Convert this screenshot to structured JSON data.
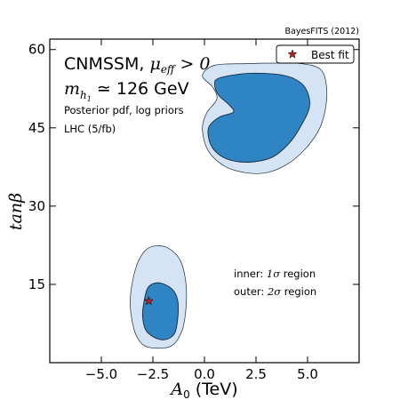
{
  "chart_data": {
    "type": "area",
    "attribution": "BayesFITS (2012)",
    "title_lines": {
      "model": "CNMSSM, ",
      "condition_symbol": "μ",
      "condition_sub": "eff",
      "condition_rel": " > 0",
      "mass_symbol": "m",
      "mass_sub": "h",
      "mass_sub_sub": "1",
      "mass_value": " ≃ 126 GeV",
      "pdf": "Posterior pdf, log priors",
      "dataset": "LHC (5/fb)"
    },
    "xlabel": {
      "symbol": "A",
      "sub": "0",
      "unit": " (TeV)"
    },
    "ylabel": "tanβ",
    "xlim": [
      -7.5,
      7.5
    ],
    "ylim": [
      0,
      62
    ],
    "x_ticks": [
      -5.0,
      -2.5,
      0.0,
      2.5,
      5.0
    ],
    "x_tick_labels": [
      "−5.0",
      "−2.5",
      "0.0",
      "2.5",
      "5.0"
    ],
    "y_ticks": [
      15,
      30,
      45,
      60
    ],
    "y_tick_labels": [
      "15",
      "30",
      "45",
      "60"
    ],
    "legend": {
      "placement": "top-right",
      "label": "Best fit",
      "marker_color": "#b22222"
    },
    "region_notes": {
      "inner_prefix": "inner: ",
      "inner_sym": "1σ",
      "inner_suffix": " region",
      "outer_prefix": "outer: ",
      "outer_sym": "2σ",
      "outer_suffix": " region"
    },
    "colors": {
      "inner": "#2f84c4",
      "outer": "#d4e4f4",
      "edge": "#1a2a3a"
    },
    "regions": [
      {
        "level": "2sigma",
        "points": [
          [
            -2.4,
            2.8
          ],
          [
            -1.6,
            3.2
          ],
          [
            -1.1,
            6.0
          ],
          [
            -0.9,
            10.2
          ],
          [
            -0.9,
            15.3
          ],
          [
            -1.2,
            19.8
          ],
          [
            -1.9,
            22.2
          ],
          [
            -2.7,
            22.0
          ],
          [
            -3.2,
            19.5
          ],
          [
            -3.5,
            15.3
          ],
          [
            -3.6,
            11.0
          ],
          [
            -3.4,
            6.2
          ],
          [
            -3.0,
            3.5
          ]
        ]
      },
      {
        "level": "1sigma",
        "points": [
          [
            -2.1,
            4.4
          ],
          [
            -1.5,
            5.3
          ],
          [
            -1.3,
            8.3
          ],
          [
            -1.3,
            12.0
          ],
          [
            -1.6,
            14.2
          ],
          [
            -2.2,
            15.3
          ],
          [
            -2.7,
            14.6
          ],
          [
            -2.9,
            12.3
          ],
          [
            -3.0,
            9.0
          ],
          [
            -2.8,
            6.0
          ]
        ]
      },
      {
        "level": "2sigma",
        "points": [
          [
            -0.1,
            55.0
          ],
          [
            0.5,
            57.0
          ],
          [
            2.0,
            57.3
          ],
          [
            3.5,
            57.4
          ],
          [
            4.7,
            57.3
          ],
          [
            5.6,
            56.3
          ],
          [
            5.9,
            53.5
          ],
          [
            5.9,
            49.5
          ],
          [
            5.6,
            45.0
          ],
          [
            4.9,
            41.0
          ],
          [
            4.0,
            38.0
          ],
          [
            3.0,
            36.4
          ],
          [
            2.0,
            36.4
          ],
          [
            1.0,
            37.6
          ],
          [
            0.2,
            40.5
          ],
          [
            -0.1,
            44.6
          ],
          [
            0.1,
            47.8
          ],
          [
            0.6,
            50.5
          ],
          [
            0.4,
            52.8
          ]
        ]
      },
      {
        "level": "1sigma",
        "points": [
          [
            0.7,
            54.5
          ],
          [
            2.0,
            55.4
          ],
          [
            3.4,
            55.3
          ],
          [
            4.3,
            54.5
          ],
          [
            4.9,
            52.6
          ],
          [
            5.1,
            49.2
          ],
          [
            4.7,
            45.5
          ],
          [
            4.1,
            42.0
          ],
          [
            3.3,
            39.4
          ],
          [
            2.4,
            38.5
          ],
          [
            1.5,
            38.6
          ],
          [
            0.8,
            39.6
          ],
          [
            0.3,
            41.8
          ],
          [
            0.2,
            45.0
          ],
          [
            0.7,
            47.0
          ],
          [
            1.4,
            48.0
          ],
          [
            1.2,
            49.4
          ],
          [
            0.7,
            51.2
          ],
          [
            0.5,
            53.2
          ]
        ]
      }
    ],
    "best_fit": [
      -2.7,
      11.8
    ]
  }
}
